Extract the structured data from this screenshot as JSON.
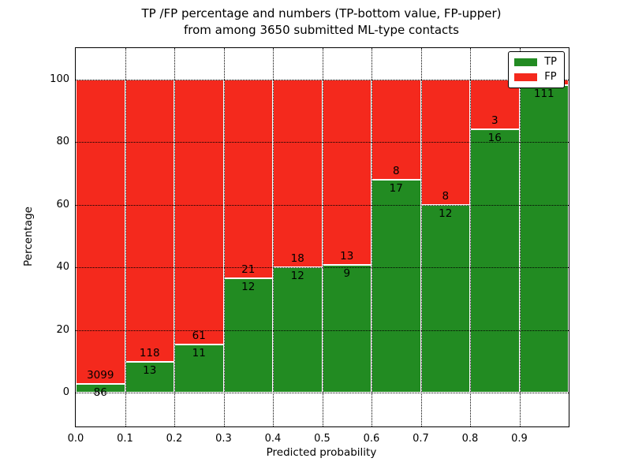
{
  "chart_data": {
    "type": "bar",
    "stacked": true,
    "title_line1": "TP /FP percentage and numbers (TP-bottom value, FP-upper)",
    "title_line2": "from among 3650 submitted ML-type contacts",
    "xlabel": "Predicted probability",
    "ylabel": "Percentage",
    "x_tick_labels": [
      "0.0",
      "0.1",
      "0.2",
      "0.3",
      "0.4",
      "0.5",
      "0.6",
      "0.7",
      "0.8",
      "0.9"
    ],
    "y_ticks": [
      0,
      20,
      40,
      60,
      80,
      100
    ],
    "y_tick_labels": [
      "0",
      "20",
      "40",
      "60",
      "80",
      "100"
    ],
    "xlim": [
      0.0,
      1.0
    ],
    "ylim": [
      -10.8,
      110
    ],
    "grid": true,
    "bin_width": 0.1,
    "categories": [
      "0.0-0.1",
      "0.1-0.2",
      "0.2-0.3",
      "0.3-0.4",
      "0.4-0.5",
      "0.5-0.6",
      "0.6-0.7",
      "0.7-0.8",
      "0.8-0.9",
      "0.9-1.0"
    ],
    "series": [
      {
        "name": "TP",
        "color": "#228b22",
        "counts": [
          86,
          13,
          11,
          12,
          12,
          9,
          17,
          12,
          16,
          111
        ],
        "labels": [
          "86",
          "13",
          "11",
          "12",
          "12",
          "9",
          "17",
          "12",
          "16",
          "111"
        ],
        "percents": [
          2.7,
          9.9,
          15.3,
          36.4,
          40.0,
          40.9,
          68.0,
          60.0,
          84.2,
          98.2
        ]
      },
      {
        "name": "FP",
        "color": "#f4291d",
        "counts": [
          3099,
          118,
          61,
          21,
          18,
          13,
          8,
          8,
          3,
          null
        ],
        "labels": [
          "3099",
          "118",
          "61",
          "21",
          "18",
          "13",
          "8",
          "8",
          "3",
          ""
        ],
        "percents": [
          97.3,
          90.1,
          84.7,
          63.6,
          60.0,
          59.1,
          32.0,
          40.0,
          15.8,
          1.8
        ]
      }
    ],
    "legend": {
      "position": "upper right",
      "entries": [
        {
          "label": "TP",
          "color": "#228b22"
        },
        {
          "label": "FP",
          "color": "#f4291d"
        }
      ]
    }
  }
}
